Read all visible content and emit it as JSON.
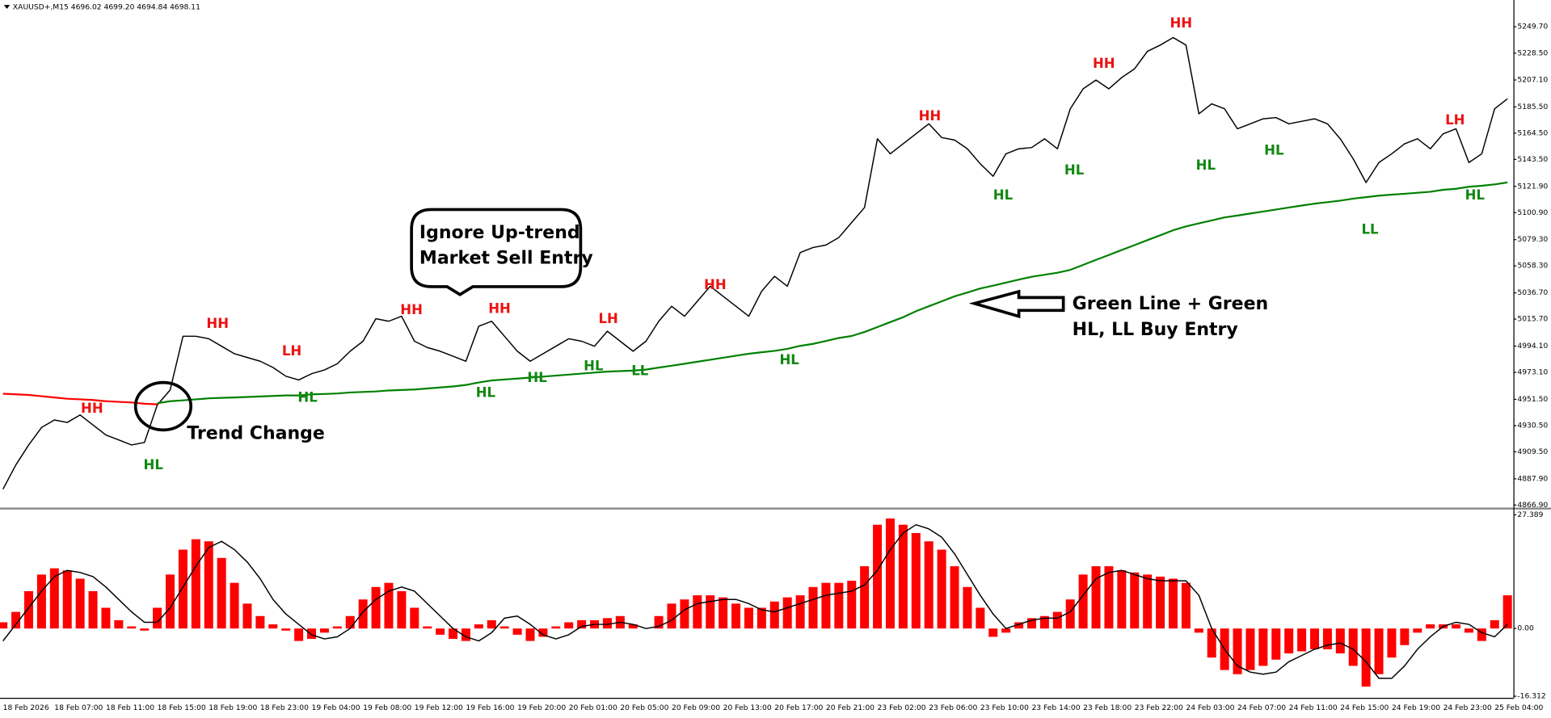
{
  "chart_data": [
    {
      "type": "line",
      "header": "XAUUSD+,M15  4696.02 4699.20 4694.84 4698.11",
      "categories": [
        "18 Feb 2026",
        null,
        null,
        null,
        "18 Feb 07:00",
        null,
        null,
        null,
        "18 Feb 11:00",
        null,
        null,
        null,
        "18 Feb 15:00",
        null,
        null,
        null,
        "18 Feb 19:00",
        null,
        null,
        null,
        "18 Feb 23:00",
        null,
        null,
        null,
        "19 Feb 04:00",
        null,
        null,
        null,
        "19 Feb 08:00",
        null,
        null,
        null,
        "19 Feb 12:00",
        null,
        null,
        null,
        "19 Feb 16:00",
        null,
        null,
        null,
        "19 Feb 20:00",
        null,
        null,
        null,
        "20 Feb 01:00",
        null,
        null,
        null,
        "20 Feb 05:00",
        null,
        null,
        null,
        "20 Feb 09:00",
        null,
        null,
        null,
        "20 Feb 13:00",
        null,
        null,
        null,
        "20 Feb 17:00",
        null,
        null,
        null,
        "20 Feb 21:00",
        null,
        null,
        null,
        "23 Feb 02:00",
        null,
        null,
        null,
        "23 Feb 06:00",
        null,
        null,
        null,
        "23 Feb 10:00",
        null,
        null,
        null,
        "23 Feb 14:00",
        null,
        null,
        null,
        "23 Feb 18:00",
        null,
        null,
        null,
        "23 Feb 22:00",
        null,
        null,
        null,
        "24 Feb 03:00",
        null,
        null,
        null,
        "24 Feb 07:00",
        null,
        null,
        null,
        "24 Feb 11:00",
        null,
        null,
        null,
        "24 Feb 15:00",
        null,
        null,
        null,
        "24 Feb 19:00",
        null,
        null,
        null,
        "24 Feb 23:00",
        null,
        null,
        null,
        "25 Feb 04:00",
        null
      ],
      "series": [
        {
          "color": "#000000",
          "values": [
            4879.6,
            4899,
            4915,
            4929,
            4935,
            4933,
            4939,
            4931,
            4923,
            4919,
            4915,
            4917,
            4947,
            4959,
            5002,
            5002,
            5000,
            4994,
            4988,
            4985,
            4982,
            4977,
            4970,
            4967,
            4972,
            4975,
            4980,
            4990,
            4998,
            5016,
            5014,
            5018,
            4998,
            4993,
            4990,
            4986,
            4982,
            5010,
            5014,
            5002,
            4990,
            4982,
            4988,
            4994,
            5000,
            4998,
            4994,
            5006,
            4998,
            4990,
            4998,
            5014,
            5026,
            5018,
            5030,
            5042,
            5034,
            5026,
            5018,
            5038,
            5050,
            5042,
            5069,
            5073,
            5075,
            5081,
            5093,
            5105,
            5160,
            5148,
            5156,
            5164,
            5172,
            5161,
            5159,
            5152,
            5140,
            5130,
            5148,
            5152,
            5153,
            5160,
            5152,
            5184,
            5200,
            5207,
            5200,
            5209,
            5216,
            5230,
            5235,
            5241,
            5235,
            5180,
            5188,
            5184,
            5168,
            5172,
            5176,
            5177,
            5172,
            5174,
            5176,
            5172,
            5160,
            5144,
            5125,
            5141,
            5148,
            5156,
            5160,
            5152,
            5164,
            5168,
            5141,
            5148,
            5184,
            5192
          ]
        },
        {
          "color": "#ff0000",
          "values": [
            4956,
            4955.5,
            4955,
            4954,
            4953,
            4952,
            4951.5,
            4951,
            4950,
            4949.5,
            4949,
            4948,
            4947.5,
            null,
            null,
            null,
            null,
            null,
            null,
            null,
            null,
            null,
            null,
            null,
            null,
            null,
            null,
            null,
            null,
            null,
            null,
            null,
            null,
            null,
            null,
            null,
            null,
            null,
            null,
            null,
            null,
            null,
            null,
            null,
            null,
            null,
            null,
            null,
            null,
            null,
            null,
            null,
            null,
            null,
            null,
            null,
            null,
            null,
            null,
            null,
            null,
            null,
            null,
            null,
            null,
            null,
            null,
            null,
            null,
            null,
            null,
            null,
            null,
            null,
            null,
            null,
            null,
            null,
            null,
            null,
            null,
            null,
            null,
            null,
            null,
            null,
            null,
            null,
            null,
            null,
            null,
            null,
            null,
            null,
            null,
            null,
            null,
            null,
            null,
            null,
            null,
            null,
            null,
            null,
            null,
            null,
            null,
            null,
            null,
            null,
            null,
            null,
            null,
            null,
            null,
            null,
            null,
            null
          ]
        },
        {
          "color": "#008000",
          "values": [
            null,
            null,
            null,
            null,
            null,
            null,
            null,
            null,
            null,
            null,
            null,
            null,
            4948.4,
            4950,
            4950.7,
            4951.5,
            4952.3,
            4952.7,
            4953,
            4953.4,
            4953.8,
            4954.2,
            4954.6,
            4954.6,
            4955.5,
            4955.8,
            4956.2,
            4957,
            4957.4,
            4957.8,
            4958.6,
            4959,
            4959.4,
            4960.2,
            4961,
            4961.8,
            4963,
            4965,
            4966.6,
            4967.4,
            4968.1,
            4968.9,
            4969.7,
            4970.5,
            4971.3,
            4972.1,
            4972.9,
            4973.7,
            4974.1,
            4974.5,
            4975.3,
            4976.9,
            4978.4,
            4980,
            4981.6,
            4983.2,
            4984.8,
            4986.4,
            4988,
            4989.2,
            4990.3,
            4991.9,
            4994.3,
            4995.9,
            4998.2,
            5000.6,
            5002.2,
            5005.4,
            5009.3,
            5013.3,
            5017.2,
            5022,
            5026,
            5029.9,
            5033.9,
            5037,
            5040.2,
            5042.5,
            5044.9,
            5047.3,
            5049.6,
            5051.2,
            5052.8,
            5055.1,
            5059.1,
            5063.1,
            5067,
            5071,
            5074.9,
            5078.9,
            5082.8,
            5086.8,
            5089.9,
            5092.3,
            5094.7,
            5097.1,
            5098.6,
            5100.2,
            5101.8,
            5103.4,
            5105,
            5106.6,
            5108.1,
            5109.3,
            5110.5,
            5112.1,
            5113.3,
            5114.5,
            5115.3,
            5116,
            5116.8,
            5117.6,
            5119.2,
            5120,
            5121.6,
            5122.4,
            5123.5,
            5125.1
          ]
        }
      ],
      "ylim": [
        4864.5,
        5260
      ],
      "yticks": [
        {
          "value": 5249.7,
          "label": "5249.70"
        },
        {
          "value": 5228.5,
          "label": "5228.50"
        },
        {
          "value": 5207.1,
          "label": "5207.10"
        },
        {
          "value": 5185.5,
          "label": "5185.50"
        },
        {
          "value": 5164.5,
          "label": "5164.50"
        },
        {
          "value": 5143.5,
          "label": "5143.50"
        },
        {
          "value": 5121.9,
          "label": "5121.90"
        },
        {
          "value": 5100.9,
          "label": "5100.90"
        },
        {
          "value": 5079.3,
          "label": "5079.30"
        },
        {
          "value": 5058.3,
          "label": "5058.30"
        },
        {
          "value": 5036.7,
          "label": "5036.70"
        },
        {
          "value": 5015.7,
          "label": "5015.70"
        },
        {
          "value": 4994.1,
          "label": "4994.10"
        },
        {
          "value": 4973.1,
          "label": "4973.10"
        },
        {
          "value": 4951.5,
          "label": "4951.50"
        },
        {
          "value": 4930.5,
          "label": "4930.50"
        },
        {
          "value": 4909.5,
          "label": "4909.50"
        },
        {
          "value": 4887.9,
          "label": "4887.90"
        },
        {
          "value": 4866.9,
          "label": "4866.90"
        }
      ],
      "annotations": [
        {
          "text": "HH",
          "color": "#ee1111"
        },
        {
          "text": "LH",
          "color": "#ee1111"
        },
        {
          "text": "HH",
          "color": "#ee1111"
        },
        {
          "text": "HL",
          "color": "#118811"
        },
        {
          "text": "HL",
          "color": "#118811"
        },
        {
          "text": "HH",
          "color": "#ee1111"
        },
        {
          "text": "HH",
          "color": "#ee1111"
        },
        {
          "text": "HL",
          "color": "#118811"
        },
        {
          "text": "HL",
          "color": "#118811"
        },
        {
          "text": "HL",
          "color": "#118811"
        },
        {
          "text": "LL",
          "color": "#118811"
        },
        {
          "text": "LH",
          "color": "#ee1111"
        },
        {
          "text": "HH",
          "color": "#ee1111"
        },
        {
          "text": "HL",
          "color": "#118811"
        },
        {
          "text": "HH",
          "color": "#ee1111"
        },
        {
          "text": "HL",
          "color": "#118811"
        },
        {
          "text": "HL",
          "color": "#118811"
        },
        {
          "text": "HH",
          "color": "#ee1111"
        },
        {
          "text": "HH",
          "color": "#ee1111"
        },
        {
          "text": "HL",
          "color": "#118811"
        },
        {
          "text": "HL",
          "color": "#118811"
        },
        {
          "text": "LL",
          "color": "#118811"
        },
        {
          "text": "LH",
          "color": "#ee1111"
        },
        {
          "text": "HL",
          "color": "#118811"
        }
      ],
      "callouts": [
        "Trend Change",
        "Ignore Up-trend",
        "Market Sell Entry",
        "Green Line + Green",
        "HL, LL Buy Entry"
      ]
    },
    {
      "type": "bar",
      "series": [
        {
          "color": "#ff0000",
          "values": [
            1.5,
            4,
            9,
            13,
            14.5,
            14,
            12,
            9,
            5,
            2,
            0.5,
            -0.5,
            5,
            13,
            19,
            21.5,
            21,
            17,
            11,
            6,
            3,
            1,
            -0.5,
            -3,
            -2.5,
            -1,
            0.5,
            3,
            7,
            10,
            11,
            9,
            5,
            0.5,
            -1.5,
            -2.5,
            -3,
            1,
            2,
            0.5,
            -1.5,
            -3,
            -2,
            0.5,
            1.5,
            2,
            2,
            2.5,
            3,
            1,
            0,
            3,
            6,
            7,
            8,
            8,
            7.5,
            6,
            5,
            5,
            6.5,
            7.5,
            8,
            10,
            11,
            11,
            11.5,
            15,
            25,
            26.5,
            25,
            23,
            21,
            19,
            15,
            10,
            5,
            -2,
            -1,
            1.5,
            2.5,
            3,
            4,
            7,
            13,
            15,
            15,
            14,
            13.5,
            13,
            12.5,
            12,
            11,
            -1,
            -7,
            -10,
            -11,
            -10,
            -9,
            -7.5,
            -6,
            -5.5,
            -5,
            -5,
            -6,
            -9,
            -14,
            -11,
            -7,
            -4,
            -1,
            1,
            1,
            1,
            -1,
            -3,
            2,
            8
          ]
        },
        {
          "color": "#000000",
          "kind": "line",
          "values": [
            -3,
            1,
            5,
            9,
            12.5,
            14,
            13.5,
            12.5,
            10,
            7,
            4,
            1.5,
            1.5,
            5,
            10,
            15,
            19.5,
            21,
            19,
            16,
            12,
            7,
            3.5,
            1,
            -1.5,
            -2.5,
            -2,
            0,
            4,
            7,
            9,
            10,
            9,
            6,
            3,
            0,
            -2,
            -3,
            -1,
            2.5,
            3,
            1,
            -1.5,
            -2.5,
            -1.5,
            0.5,
            1,
            1,
            1.5,
            1,
            0,
            0.5,
            2,
            4.5,
            6,
            6.5,
            7,
            7,
            6,
            4.5,
            4,
            5,
            6,
            7,
            8,
            8.5,
            9,
            10.5,
            14,
            19,
            23,
            25,
            24,
            22,
            18,
            13,
            8,
            3.5,
            0,
            1,
            2,
            2.5,
            2.5,
            4,
            8,
            12,
            13.5,
            14,
            13,
            12,
            11.5,
            11.5,
            11.5,
            8,
            0,
            -5,
            -9,
            -10.5,
            -11,
            -10.5,
            -8,
            -6.5,
            -5,
            -4,
            -3.5,
            -5,
            -8,
            -12,
            -12,
            -9,
            -5,
            -2,
            0.5,
            1.5,
            1,
            -1,
            -2,
            1
          ]
        }
      ],
      "ylim": [
        -16.7,
        28.3
      ],
      "yticks": [
        27.389,
        {
          "value": 0,
          "label": "0.00"
        },
        -16.312
      ]
    }
  ]
}
